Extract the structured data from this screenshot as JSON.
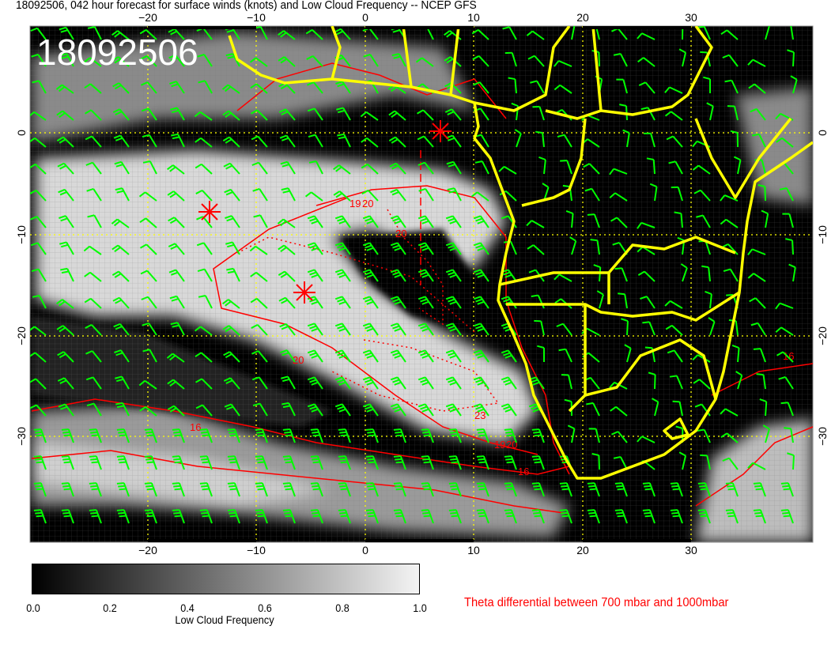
{
  "title": "18092506, 042 hour forecast for surface winds (knots) and Low Cloud Frequency -- NCEP GFS",
  "date_stamp": "18092506",
  "lon_ticks": [
    "−20",
    "−10",
    "0",
    "10",
    "20",
    "30"
  ],
  "lat_ticks": [
    "0",
    "−10",
    "−20",
    "−30"
  ],
  "colorbar": {
    "labels": [
      "0.0",
      "0.2",
      "0.4",
      "0.6",
      "0.8",
      "1.0"
    ],
    "title": "Low Cloud Frequency",
    "colors": [
      "#000000",
      "#f4f4f4"
    ]
  },
  "legend_text": "Theta differential between 700 mbar and 1000mbar",
  "contour_labels": [
    "19",
    "20",
    "20",
    "20",
    "23",
    "19",
    "20",
    "16",
    "16",
    "16"
  ],
  "colors": {
    "coastline": "#ffff00",
    "wind_barbs": "#00ff00",
    "theta_contours": "#ff0000",
    "gridlines": "#ffff00"
  },
  "map_data": {
    "lon_range": [
      -31,
      41
    ],
    "lat_range": [
      -40.5,
      10.5
    ],
    "fields": [
      "surface winds (knots)",
      "Low Cloud Frequency",
      "Theta differential between 700 mbar and 1000mbar"
    ],
    "markers": [
      {
        "type": "asterisk",
        "lon": -14.5,
        "lat": -8
      },
      {
        "type": "asterisk",
        "lon": -6,
        "lat": -16
      },
      {
        "type": "asterisk",
        "lon": 6.5,
        "lat": 0
      }
    ]
  }
}
